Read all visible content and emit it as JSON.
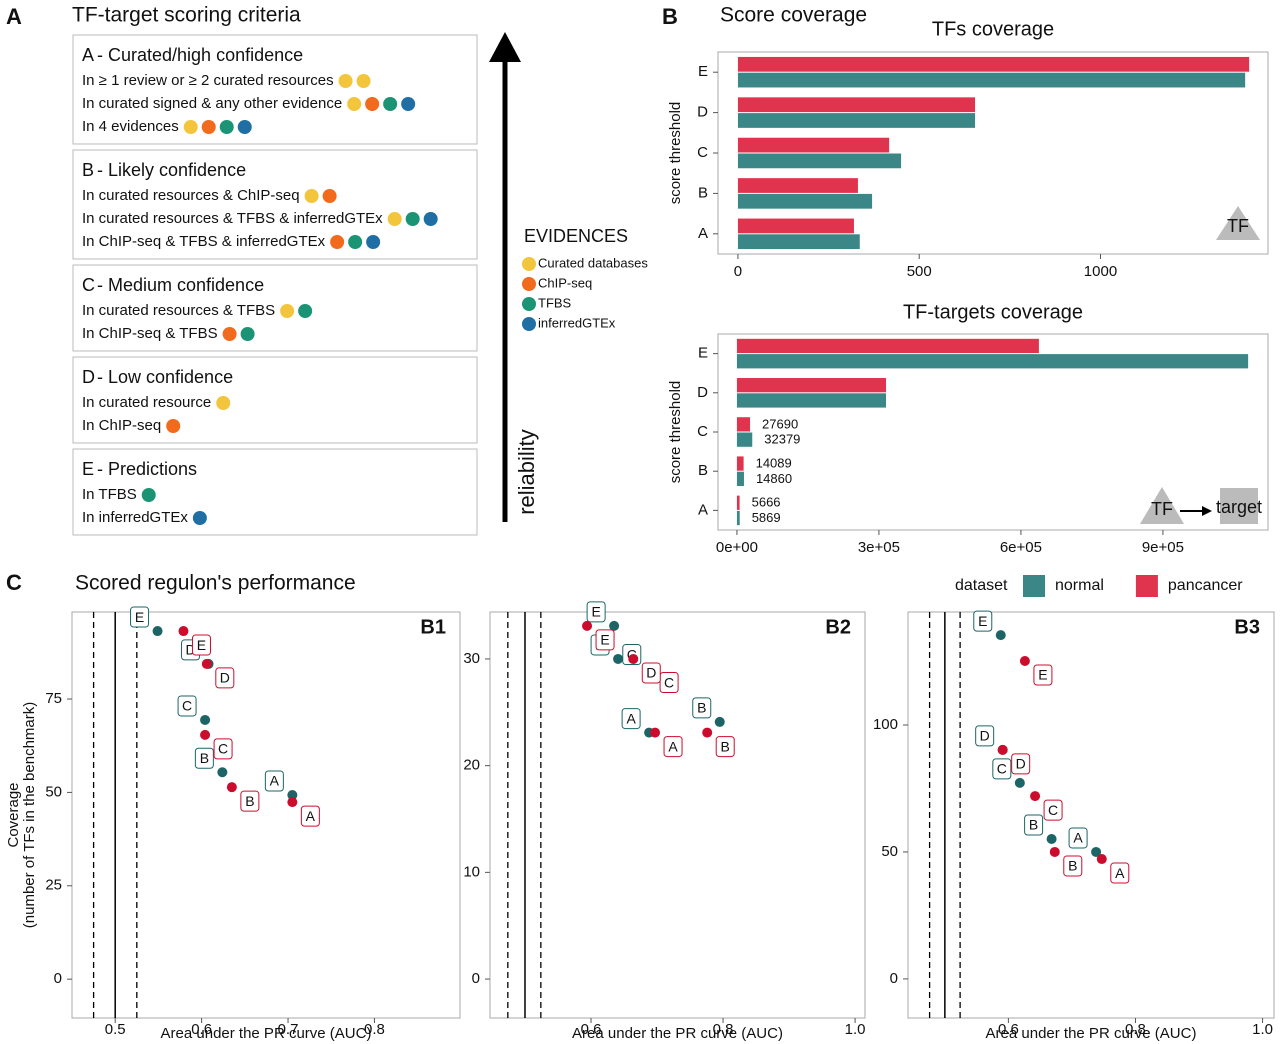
{
  "panel_a": {
    "letter": "A",
    "title": "TF-target scoring criteria",
    "groups": [
      {
        "letter": "A",
        "label": "- Curated/high confidence",
        "rows": [
          {
            "text": "In ≥ 1 review or  ≥ 2 curated resources",
            "dots": [
              0,
              0
            ]
          },
          {
            "text": "In curated signed & any other evidence",
            "dots": [
              0,
              1,
              2,
              3
            ]
          },
          {
            "text": "In 4 evidences",
            "dots": [
              0,
              1,
              2,
              3
            ]
          }
        ]
      },
      {
        "letter": "B",
        "label": "- Likely confidence",
        "rows": [
          {
            "text": "In curated resources & ChIP-seq",
            "dots": [
              0,
              1
            ]
          },
          {
            "text": "In curated resources & TFBS & inferredGTEx",
            "dots": [
              0,
              2,
              3
            ]
          },
          {
            "text": "In ChIP-seq & TFBS & inferredGTEx",
            "dots": [
              1,
              2,
              3
            ]
          }
        ]
      },
      {
        "letter": "C",
        "label": "- Medium confidence",
        "rows": [
          {
            "text": "In curated resources & TFBS",
            "dots": [
              0,
              2
            ]
          },
          {
            "text": "In ChIP-seq & TFBS",
            "dots": [
              1,
              2
            ]
          }
        ]
      },
      {
        "letter": "D",
        "label": "- Low confidence",
        "rows": [
          {
            "text": "In curated resource",
            "dots": [
              0
            ]
          },
          {
            "text": "In ChIP-seq",
            "dots": [
              1
            ]
          }
        ]
      },
      {
        "letter": "E",
        "label": "- Predictions",
        "rows": [
          {
            "text": "In TFBS",
            "dots": [
              2
            ]
          },
          {
            "text": "In inferredGTEx",
            "dots": [
              3
            ]
          }
        ]
      }
    ],
    "evidences": {
      "title": "EVIDENCES",
      "items": [
        {
          "name": "Curated databases",
          "color": "#f2c53d"
        },
        {
          "name": "ChIP-seq",
          "color": "#f26a1b"
        },
        {
          "name": "TFBS",
          "color": "#1a9474"
        },
        {
          "name": "inferredGTEx",
          "color": "#1f6fa5"
        }
      ]
    },
    "arrow_label": "reliability"
  },
  "panel_b": {
    "letter": "B",
    "title": "Score coverage"
  },
  "panel_c": {
    "letter": "C",
    "title": "Scored regulon's performance"
  },
  "chart_data": [
    {
      "type": "bar",
      "orientation": "horizontal",
      "title": "TFs coverage",
      "ylabel": "score threshold",
      "categories": [
        "A",
        "B",
        "C",
        "D",
        "E"
      ],
      "series": [
        {
          "name": "normal",
          "color": "#3b8686",
          "values": [
            336,
            370,
            450,
            654,
            1399
          ]
        },
        {
          "name": "pancancer",
          "color": "#e0344e",
          "values": [
            320,
            331,
            417,
            654,
            1410
          ]
        }
      ],
      "xlim": [
        -55,
        1462
      ],
      "xticks": [
        0,
        500,
        1000
      ],
      "legend_title": "dataset",
      "icon_labels": [
        "TF"
      ]
    },
    {
      "type": "bar",
      "orientation": "horizontal",
      "title": "TF-targets coverage",
      "ylabel": "score threshold",
      "categories": [
        "A",
        "B",
        "C",
        "D",
        "E"
      ],
      "series": [
        {
          "name": "normal",
          "color": "#3b8686",
          "values": [
            5869,
            14860,
            32379,
            315000,
            1080000
          ],
          "value_labels": [
            "5869",
            "14860",
            "32379",
            null,
            null
          ]
        },
        {
          "name": "pancancer",
          "color": "#e0344e",
          "values": [
            5666,
            14089,
            27690,
            315000,
            638000
          ],
          "value_labels": [
            "5666",
            "14089",
            "27690",
            null,
            null
          ]
        }
      ],
      "xlim": [
        -40000,
        1122000
      ],
      "xticks": [
        {
          "value": 0,
          "label": "0e+00"
        },
        {
          "value": 300000,
          "label": "3e+05"
        },
        {
          "value": 600000,
          "label": "6e+05"
        },
        {
          "value": 900000,
          "label": "9e+05"
        }
      ],
      "icon_labels": [
        "TF",
        "target"
      ]
    },
    {
      "type": "scatter",
      "title": "B1",
      "xlabel": "Area under the PR curve (AUC)",
      "ylabel": [
        "Coverage",
        "(number of TFs in the benchmark)"
      ],
      "categories": [
        "A",
        "B",
        "C",
        "D",
        "E"
      ],
      "series": [
        {
          "name": "normal",
          "color": "#1d6466",
          "x": [
            0.705,
            0.624,
            0.604,
            0.608,
            0.549
          ],
          "values": [
            49.3,
            55.4,
            69.4,
            84.4,
            93.2
          ]
        },
        {
          "name": "pancancer",
          "color": "#cc0c2c",
          "x": [
            0.705,
            0.635,
            0.604,
            0.606,
            0.579
          ],
          "values": [
            47.4,
            51.4,
            65.4,
            84.4,
            93.2
          ]
        }
      ],
      "xlim": [
        0.45,
        0.899
      ],
      "ylim": [
        -10.4,
        98.3
      ],
      "xticks": [
        0.5,
        0.6,
        0.7,
        0.8
      ],
      "yticks": [
        0,
        25,
        50,
        75
      ],
      "reference_lines": {
        "solid": [
          0.5
        ],
        "dashed": [
          0.475,
          0.525
        ]
      }
    },
    {
      "type": "scatter",
      "title": "B2",
      "xlabel": "Area under the PR curve (AUC)",
      "categories": [
        "A",
        "B",
        "C",
        "D",
        "E"
      ],
      "series": [
        {
          "name": "normal",
          "color": "#1d6466",
          "x": [
            0.688,
            0.795,
            0.689,
            0.641,
            0.635
          ],
          "values": [
            23.1,
            24.1,
            29.1,
            30,
            33.1
          ]
        },
        {
          "name": "pancancer",
          "color": "#cc0c2c",
          "x": [
            0.697,
            0.776,
            0.691,
            0.664,
            0.594
          ],
          "values": [
            23.1,
            23.1,
            29.1,
            30,
            33.1
          ]
        }
      ],
      "xlim": [
        0.447,
        1.015
      ],
      "ylim": [
        -3.65,
        34.4
      ],
      "xticks": [
        0.6,
        0.8,
        {
          "value": 1,
          "label": "1.0"
        }
      ],
      "yticks": [
        0,
        10,
        20,
        30
      ],
      "reference_lines": {
        "solid": [
          0.5
        ],
        "dashed": [
          0.474,
          0.524
        ]
      }
    },
    {
      "type": "scatter",
      "title": "B3",
      "xlabel": "Area under the PR curve (AUC)",
      "categories": [
        "A",
        "B",
        "C",
        "D",
        "E"
      ],
      "series": [
        {
          "name": "normal",
          "color": "#1d6466",
          "x": [
            0.738,
            0.668,
            0.618,
            0.591,
            0.588
          ],
          "values": [
            50,
            55.1,
            77.2,
            90.2,
            135.4
          ]
        },
        {
          "name": "pancancer",
          "color": "#cc0c2c",
          "x": [
            0.747,
            0.673,
            0.642,
            0.591,
            0.626
          ],
          "values": [
            47.2,
            50,
            72,
            90.2,
            125.2
          ]
        }
      ],
      "xlim": [
        0.442,
        1.018
      ],
      "ylim": [
        -15.4,
        144.5
      ],
      "xticks": [
        0.6,
        0.8,
        {
          "value": 1,
          "label": "1.0"
        }
      ],
      "yticks": [
        0,
        50,
        100
      ],
      "reference_lines": {
        "solid": [
          0.5
        ],
        "dashed": [
          0.476,
          0.524
        ]
      }
    }
  ]
}
